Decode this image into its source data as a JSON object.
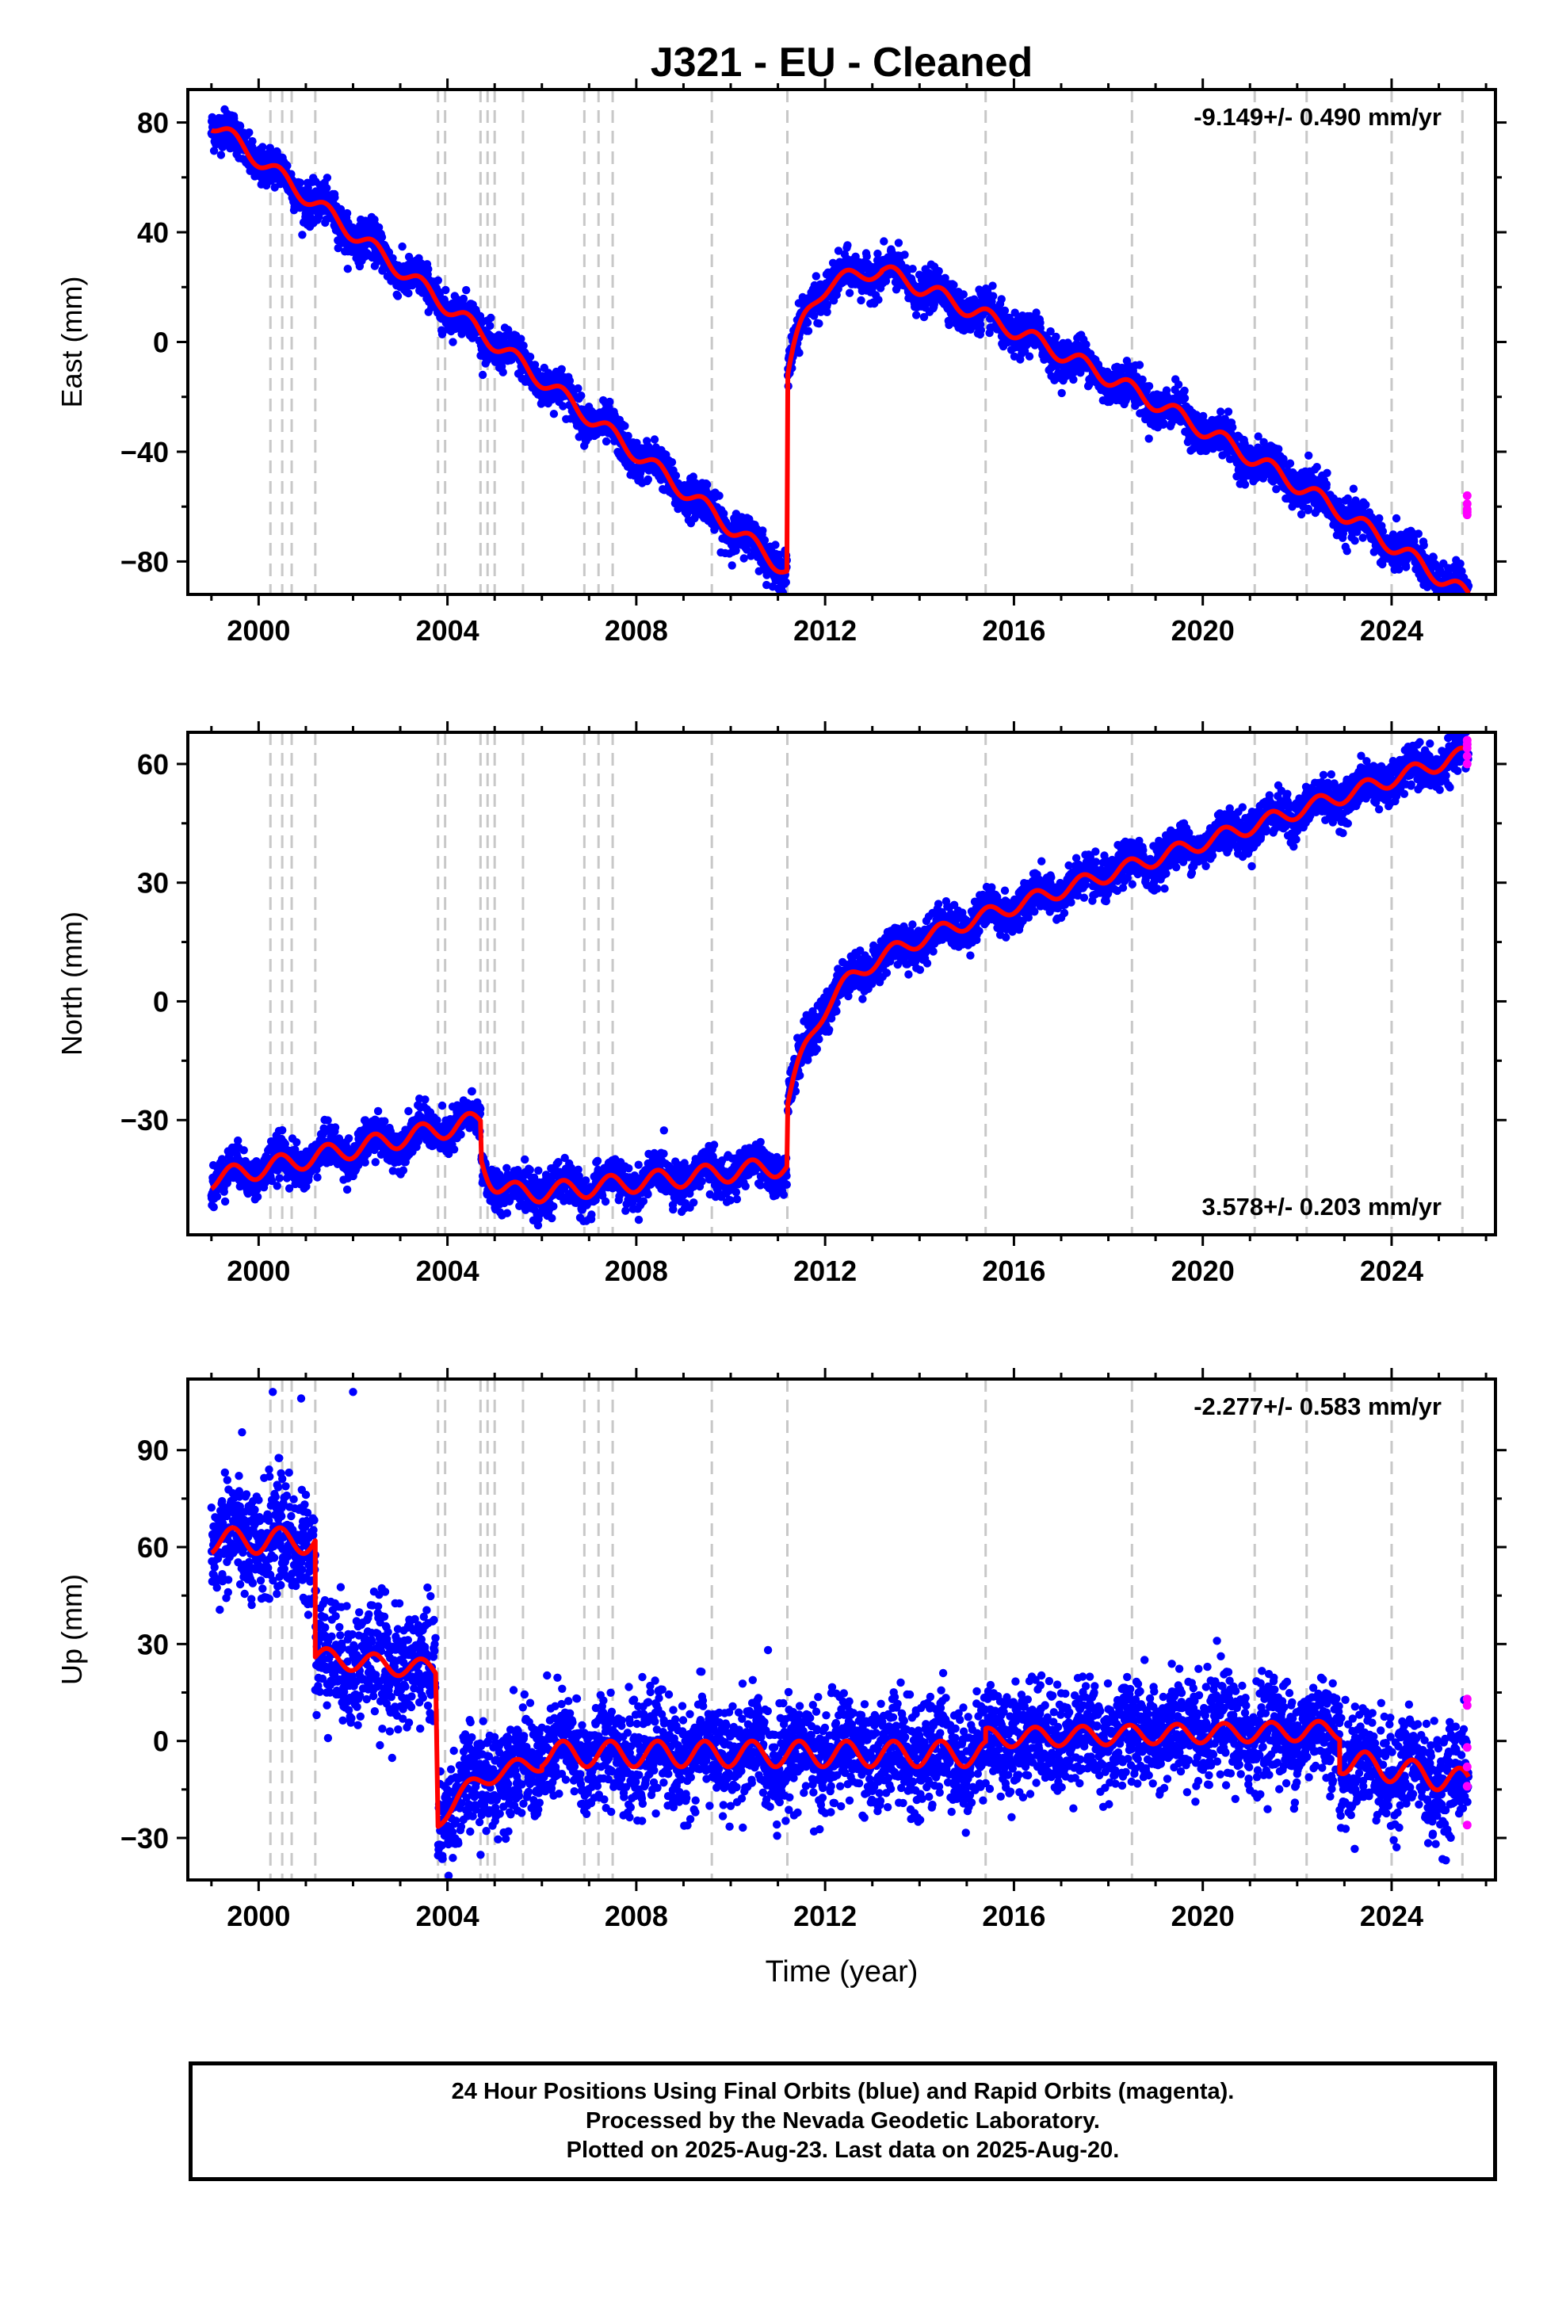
{
  "title": "J321  - EU - Cleaned",
  "xlabel": "Time (year)",
  "footer": {
    "line1": "24 Hour Positions Using Final Orbits (blue) and Rapid Orbits (magenta).",
    "line2": "Processed by the Nevada Geodetic Laboratory.",
    "line3": "Plotted on 2025-Aug-23. Last data on 2025-Aug-20."
  },
  "colors": {
    "final_orbits": "#0000ff",
    "rapid_orbits": "#ff00ff",
    "model": "#ff0000",
    "event_lines": "#c8c8c8"
  },
  "chart_data": [
    {
      "type": "scatter",
      "name": "east",
      "ylabel": "East (mm)",
      "rate_text": "-9.149+/- 0.490 mm/yr",
      "rate_position": "top-right",
      "xlim": [
        1998.5,
        2026.2
      ],
      "ylim": [
        -92,
        92
      ],
      "xticks": [
        2000,
        2004,
        2008,
        2012,
        2016,
        2020,
        2024
      ],
      "xticklabels": [
        "2000",
        "2004",
        "2008",
        "2012",
        "2016",
        "2020",
        "2024"
      ],
      "yticks": [
        -80,
        -40,
        0,
        40,
        80
      ],
      "yticklabels": [
        "−80",
        "−40",
        "0",
        "40",
        "80"
      ],
      "event_lines": [
        2000.25,
        2000.5,
        2000.7,
        2001.2,
        2003.8,
        2003.95,
        2004.7,
        2004.85,
        2005.0,
        2005.6,
        2006.9,
        2007.2,
        2007.5,
        2009.6,
        2011.2,
        2015.4,
        2018.5,
        2021.1,
        2022.2,
        2024.0,
        2025.5
      ],
      "model_pieces": [
        {
          "x0": 1999.0,
          "x1": 2011.19,
          "y0": 80,
          "rate": -13.4,
          "amp": 3
        },
        {
          "x0": 2011.21,
          "x1": 2013.2,
          "y0": -12,
          "exp_to": 26,
          "tau": 0.45,
          "amp": 2.5
        },
        {
          "x0": 2013.2,
          "x1": 2025.63,
          "y0": 26,
          "rate": -7.2,
          "curv": -0.19,
          "amp": 3
        }
      ],
      "scatter_spread": 3.5,
      "rapid_points": [
        -56,
        -59,
        -61,
        -62,
        -63
      ]
    },
    {
      "type": "scatter",
      "name": "north",
      "ylabel": "North (mm)",
      "rate_text": "3.578+/- 0.203 mm/yr",
      "rate_position": "bottom-right",
      "xlim": [
        1998.5,
        2026.2
      ],
      "ylim": [
        -59,
        68
      ],
      "xticks": [
        2000,
        2004,
        2008,
        2012,
        2016,
        2020,
        2024
      ],
      "xticklabels": [
        "2000",
        "2004",
        "2008",
        "2012",
        "2016",
        "2020",
        "2024"
      ],
      "yticks": [
        -30,
        0,
        30,
        60
      ],
      "yticklabels": [
        "−30",
        "0",
        "30",
        "60"
      ],
      "event_lines": [
        2000.25,
        2000.5,
        2000.7,
        2001.2,
        2003.8,
        2003.95,
        2004.7,
        2004.85,
        2005.0,
        2005.6,
        2006.9,
        2007.2,
        2007.5,
        2009.6,
        2011.2,
        2015.4,
        2018.5,
        2021.1,
        2022.2,
        2024.0,
        2025.5
      ],
      "model_pieces": [
        {
          "x0": 1999.0,
          "x1": 2004.7,
          "y0": -45,
          "rate": 2.6,
          "amp": 2.5
        },
        {
          "x0": 2004.72,
          "x1": 2011.19,
          "y0": -40,
          "exp_to": -50,
          "tau": 0.3,
          "rate": 1.3,
          "amp": 2.5
        },
        {
          "x0": 2011.21,
          "x1": 2025.63,
          "y0": -26,
          "exp_to": 5,
          "tau": 0.7,
          "rate": 4.0,
          "amp": 2
        }
      ],
      "scatter_spread": 2.5,
      "rapid_points": [
        60,
        62,
        64,
        65,
        66
      ]
    },
    {
      "type": "scatter",
      "name": "up",
      "ylabel": "Up (mm)",
      "rate_text": "-2.277+/- 0.583 mm/yr",
      "rate_position": "top-right",
      "xlim": [
        1998.5,
        2026.2
      ],
      "ylim": [
        -43,
        112
      ],
      "xticks": [
        2000,
        2004,
        2008,
        2012,
        2016,
        2020,
        2024
      ],
      "xticklabels": [
        "2000",
        "2004",
        "2008",
        "2012",
        "2016",
        "2020",
        "2024"
      ],
      "yticks": [
        -30,
        0,
        30,
        60,
        90
      ],
      "yticklabels": [
        "−30",
        "0",
        "30",
        "60",
        "90"
      ],
      "event_lines": [
        2000.25,
        2000.5,
        2000.7,
        2001.2,
        2003.8,
        2003.95,
        2004.7,
        2004.85,
        2005.0,
        2005.6,
        2006.9,
        2007.2,
        2007.5,
        2009.6,
        2011.2,
        2015.4,
        2018.5,
        2021.1,
        2022.2,
        2024.0,
        2025.5
      ],
      "model_pieces": [
        {
          "x0": 1999.0,
          "x1": 2001.2,
          "y0": 62,
          "rate": 0,
          "amp": 4
        },
        {
          "x0": 2001.2,
          "x1": 2003.75,
          "y0": 26,
          "rate": -1.6,
          "amp": 3
        },
        {
          "x0": 2003.8,
          "x1": 2006.0,
          "y0": -25,
          "exp_to": -5,
          "tau": 0.9,
          "amp": 2.5
        },
        {
          "x0": 2006.0,
          "x1": 2015.4,
          "y0": -4,
          "rate": 0,
          "amp": 4
        },
        {
          "x0": 2015.4,
          "x1": 2022.9,
          "y0": 1,
          "rate": 0.3,
          "amp": 3
        },
        {
          "x0": 2022.9,
          "x1": 2025.63,
          "y0": -6,
          "rate": -2.5,
          "amp": 4
        }
      ],
      "scatter_spread": 8,
      "rapid_points": [
        13,
        11,
        -2,
        -8,
        -14,
        -26
      ]
    }
  ]
}
